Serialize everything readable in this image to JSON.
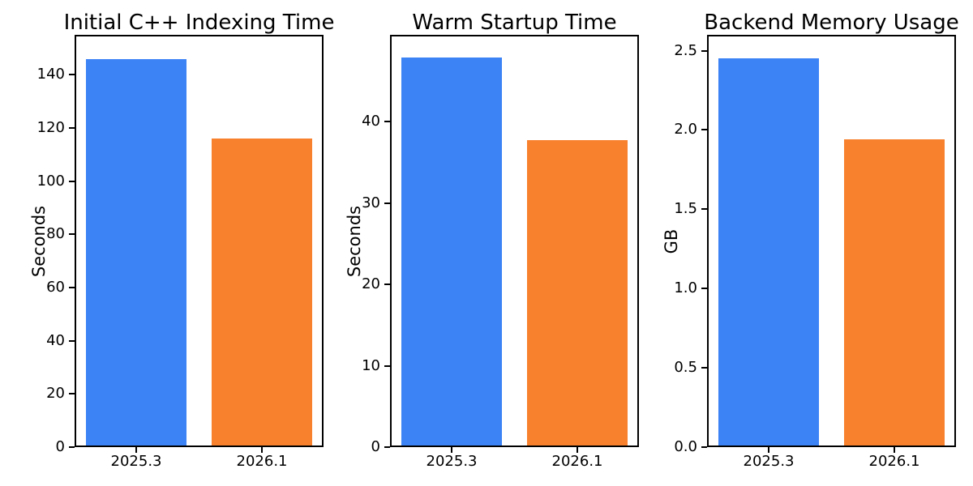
{
  "figure": {
    "background": "#ffffff",
    "text_color": "#000000"
  },
  "chart_data": [
    {
      "type": "bar",
      "title": "Initial C++ Indexing Time",
      "xlabel": "",
      "ylabel": "Seconds",
      "categories": [
        "2025.3",
        "2026.1"
      ],
      "values": [
        146,
        116
      ],
      "bar_colors": [
        "#3c83f6",
        "#f8812e"
      ],
      "ylim": [
        0,
        155
      ],
      "yticks": [
        0,
        20,
        40,
        60,
        80,
        100,
        120,
        140
      ],
      "ytick_labels": [
        "0",
        "20",
        "40",
        "60",
        "80",
        "100",
        "120",
        "140"
      ],
      "grid": false,
      "legend": "none"
    },
    {
      "type": "bar",
      "title": "Warm Startup Time",
      "xlabel": "",
      "ylabel": "Seconds",
      "categories": [
        "2025.3",
        "2026.1"
      ],
      "values": [
        47.9,
        37.8
      ],
      "bar_colors": [
        "#3c83f6",
        "#f8812e"
      ],
      "ylim": [
        0,
        50.7
      ],
      "yticks": [
        0,
        10,
        20,
        30,
        40
      ],
      "ytick_labels": [
        "0",
        "10",
        "20",
        "30",
        "40"
      ],
      "grid": false,
      "legend": "none"
    },
    {
      "type": "bar",
      "title": "Backend Memory Usage",
      "xlabel": "",
      "ylabel": "GB",
      "categories": [
        "2025.3",
        "2026.1"
      ],
      "values": [
        2.45,
        1.94
      ],
      "bar_colors": [
        "#3c83f6",
        "#f8812e"
      ],
      "ylim": [
        0,
        2.6
      ],
      "yticks": [
        0,
        0.5,
        1.0,
        1.5,
        2.0,
        2.5
      ],
      "ytick_labels": [
        "0.0",
        "0.5",
        "1.0",
        "1.5",
        "2.0",
        "2.5"
      ],
      "grid": false,
      "legend": "none"
    }
  ]
}
